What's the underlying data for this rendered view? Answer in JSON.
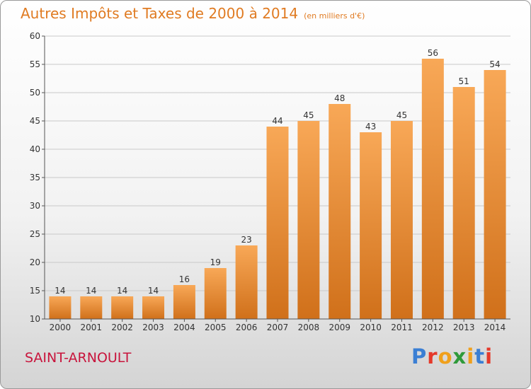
{
  "header": {
    "title": "Autres Impôts et Taxes de 2000 à 2014",
    "unit": "(en milliers d'€)"
  },
  "footer": {
    "place": "SAINT-ARNOULT",
    "logo": "Proxiti"
  },
  "colors": {
    "bar_light": "#f8a857",
    "bar_dark": "#d0701a",
    "title": "#e07b22",
    "place": "#c8143c",
    "grid": "#c9c9c9"
  },
  "chart_data": {
    "type": "bar",
    "title": "Autres Impôts et Taxes de 2000 à 2014",
    "subtitle": "(en milliers d'€)",
    "categories": [
      "2000",
      "2001",
      "2002",
      "2003",
      "2004",
      "2005",
      "2006",
      "2007",
      "2008",
      "2009",
      "2010",
      "2011",
      "2012",
      "2013",
      "2014"
    ],
    "values": [
      14,
      14,
      14,
      14,
      16,
      19,
      23,
      44,
      45,
      48,
      43,
      45,
      56,
      51,
      54
    ],
    "ylim": [
      10,
      60
    ],
    "yticks": [
      10,
      15,
      20,
      25,
      30,
      35,
      40,
      45,
      50,
      55,
      60
    ],
    "grid": true,
    "xlabel": "",
    "ylabel": ""
  }
}
